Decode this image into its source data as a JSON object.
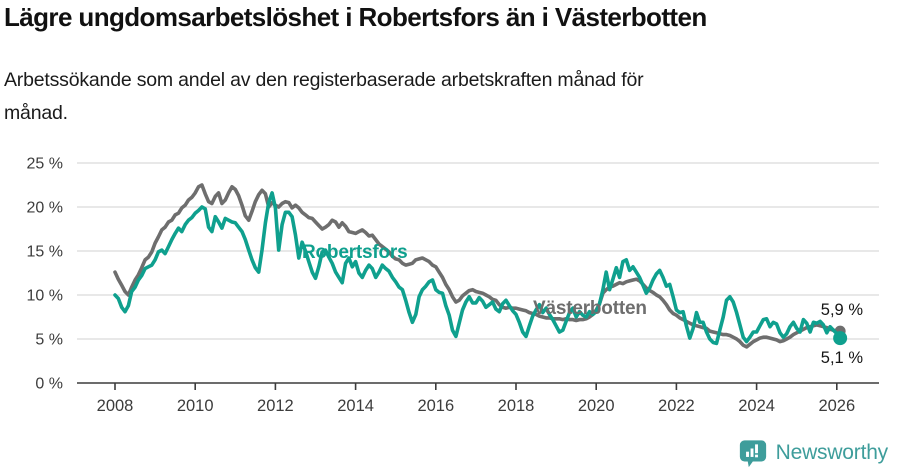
{
  "header": {
    "title": "Lägre ungdomsarbetslöshet i Robertsfors än i Västerbotten",
    "subtitle": "Arbetssökande som andel av den registerbaserade arbetskraften månad för månad."
  },
  "chart_data": {
    "type": "line",
    "title": "Lägre ungdomsarbetslöshet i Robertsfors än i Västerbotten",
    "subtitle": "Arbetssökande som andel av den registerbaserade arbetskraften månad för månad.",
    "frequency": "monthly",
    "x_range": {
      "start": "2008-01",
      "end": "2026-02"
    },
    "x_ticks": [
      2008,
      2010,
      2012,
      2014,
      2016,
      2018,
      2020,
      2022,
      2024,
      2026
    ],
    "y_ticks": [
      {
        "value": 0,
        "label": "0 %"
      },
      {
        "value": 5,
        "label": "5 %"
      },
      {
        "value": 10,
        "label": "10 %"
      },
      {
        "value": 15,
        "label": "15 %"
      },
      {
        "value": 20,
        "label": "20 %"
      },
      {
        "value": 25,
        "label": "25 %"
      }
    ],
    "ylim": [
      0,
      25
    ],
    "grid": true,
    "legend": "inline-labels",
    "colors": {
      "robertsfors": "#0FA08E",
      "vasterbotten": "#6E6E6E",
      "grid": "#DADADA",
      "axis": "#3C3C3C",
      "value_label": "#151515"
    },
    "series": [
      {
        "name": "Robertsfors",
        "color": "#0FA08E",
        "end_label": "5,1 %",
        "end_value": 5.1,
        "values": [
          10.0,
          9.6,
          8.6,
          8.1,
          8.8,
          10.4,
          10.9,
          11.7,
          12.2,
          13.0,
          13.2,
          13.4,
          14.0,
          14.9,
          15.1,
          14.7,
          15.5,
          16.3,
          17.0,
          17.6,
          17.2,
          18.0,
          18.5,
          18.8,
          19.3,
          19.6,
          20.0,
          19.8,
          17.7,
          17.2,
          18.9,
          18.3,
          17.6,
          18.7,
          18.5,
          18.3,
          18.2,
          17.7,
          17.2,
          16.3,
          15.1,
          14.0,
          13.1,
          12.6,
          15.1,
          18.2,
          20.5,
          21.6,
          19.9,
          15.1,
          18.0,
          19.4,
          19.4,
          18.9,
          16.8,
          14.2,
          16.0,
          15.0,
          13.8,
          12.6,
          11.9,
          13.2,
          14.9,
          15.1,
          14.3,
          13.6,
          12.6,
          12.0,
          11.4,
          13.6,
          14.2,
          13.2,
          13.8,
          12.5,
          12.0,
          12.8,
          13.4,
          13.0,
          12.0,
          12.6,
          13.4,
          13.0,
          12.7,
          12.0,
          11.5,
          10.9,
          10.6,
          9.4,
          8.0,
          6.9,
          7.8,
          9.8,
          10.6,
          11.0,
          11.5,
          11.7,
          10.6,
          10.3,
          10.2,
          8.8,
          7.7,
          6.0,
          5.3,
          6.8,
          8.3,
          9.2,
          9.8,
          9.1,
          9.1,
          9.7,
          9.3,
          8.6,
          8.9,
          9.2,
          8.4,
          8.1,
          9.0,
          9.4,
          8.8,
          8.2,
          7.8,
          6.9,
          5.8,
          5.3,
          6.5,
          7.6,
          8.3,
          8.9,
          8.0,
          8.5,
          7.8,
          7.2,
          6.5,
          5.8,
          6.0,
          7.0,
          8.0,
          8.5,
          7.5,
          8.1,
          7.7,
          7.5,
          8.1,
          7.8,
          8.1,
          9.0,
          10.6,
          12.6,
          10.6,
          11.8,
          13.1,
          12.0,
          13.8,
          14.0,
          12.8,
          13.2,
          12.6,
          12.0,
          11.1,
          10.2,
          10.8,
          11.7,
          12.4,
          12.8,
          12.0,
          11.0,
          11.2,
          9.8,
          8.3,
          8.0,
          8.1,
          6.5,
          5.1,
          6.2,
          8.0,
          6.9,
          6.9,
          5.8,
          5.0,
          4.6,
          4.5,
          6.0,
          7.5,
          9.4,
          9.8,
          9.2,
          8.0,
          6.6,
          5.2,
          4.7,
          5.2,
          5.8,
          5.8,
          6.5,
          7.2,
          7.3,
          6.4,
          6.9,
          6.7,
          5.7,
          5.2,
          5.6,
          6.4,
          6.9,
          6.2,
          5.8,
          7.2,
          6.8,
          5.8,
          6.9,
          6.8,
          7.0,
          6.6,
          5.7,
          6.4,
          6.0,
          5.6,
          5.1
        ]
      },
      {
        "name": "Västerbotten",
        "color": "#6E6E6E",
        "end_label": "5,9 %",
        "end_value": 5.9,
        "values": [
          12.6,
          11.8,
          11.1,
          10.4,
          10.0,
          10.9,
          11.7,
          12.3,
          13.1,
          14.0,
          14.3,
          14.9,
          15.9,
          16.6,
          17.4,
          17.7,
          18.3,
          18.5,
          19.1,
          19.3,
          19.9,
          20.2,
          20.8,
          21.1,
          21.6,
          22.3,
          22.5,
          21.5,
          20.6,
          20.4,
          21.2,
          21.6,
          20.4,
          20.8,
          21.6,
          22.3,
          22.0,
          21.3,
          20.2,
          19.0,
          18.5,
          19.5,
          20.6,
          21.4,
          21.9,
          21.5,
          20.0,
          20.5,
          20.2,
          20.0,
          20.4,
          20.6,
          20.5,
          19.9,
          20.2,
          19.9,
          19.4,
          19.1,
          18.8,
          18.7,
          18.3,
          17.9,
          17.5,
          17.7,
          18.0,
          18.5,
          18.3,
          17.7,
          18.2,
          17.8,
          17.2,
          17.1,
          17.0,
          17.2,
          17.4,
          17.1,
          16.7,
          16.8,
          16.3,
          15.8,
          15.5,
          15.2,
          14.9,
          14.4,
          14.1,
          14.0,
          13.6,
          13.4,
          13.5,
          13.6,
          14.0,
          14.1,
          14.2,
          14.0,
          13.8,
          13.4,
          13.2,
          12.6,
          12.0,
          11.2,
          10.6,
          9.8,
          9.2,
          9.4,
          9.9,
          10.2,
          10.5,
          10.6,
          10.4,
          10.3,
          10.2,
          10.0,
          9.8,
          9.5,
          9.4,
          8.9,
          8.6,
          8.5,
          8.6,
          8.5,
          8.5,
          8.4,
          8.3,
          8.2,
          8.0,
          7.9,
          7.8,
          7.6,
          7.5,
          7.4,
          7.4,
          7.3,
          7.3,
          7.3,
          7.2,
          7.3,
          7.2,
          7.2,
          7.1,
          7.2,
          7.2,
          7.3,
          7.5,
          7.8,
          8.3,
          9.0,
          10.2,
          10.6,
          10.9,
          11.0,
          11.2,
          11.4,
          11.3,
          11.5,
          11.6,
          11.7,
          11.8,
          11.6,
          11.2,
          10.8,
          10.5,
          10.3,
          10.0,
          9.8,
          9.4,
          8.9,
          8.3,
          7.9,
          7.7,
          7.4,
          7.2,
          7.0,
          6.8,
          6.6,
          6.5,
          6.4,
          6.3,
          6.2,
          5.9,
          5.8,
          5.7,
          5.6,
          5.5,
          5.5,
          5.4,
          5.2,
          5.0,
          4.7,
          4.3,
          4.1,
          4.4,
          4.7,
          4.9,
          5.1,
          5.2,
          5.2,
          5.1,
          5.0,
          4.9,
          4.7,
          4.8,
          5.0,
          5.2,
          5.5,
          5.7,
          5.9,
          6.1,
          6.3,
          6.4,
          6.5,
          6.6,
          6.5,
          6.4,
          6.3,
          6.1,
          6.0,
          5.9,
          5.9
        ]
      }
    ]
  },
  "footer": {
    "brand": "Newsworthy",
    "brand_color": "#3E9D9B",
    "logo_icon": "newsworthy-speech-bubble-bar-chart-icon"
  }
}
